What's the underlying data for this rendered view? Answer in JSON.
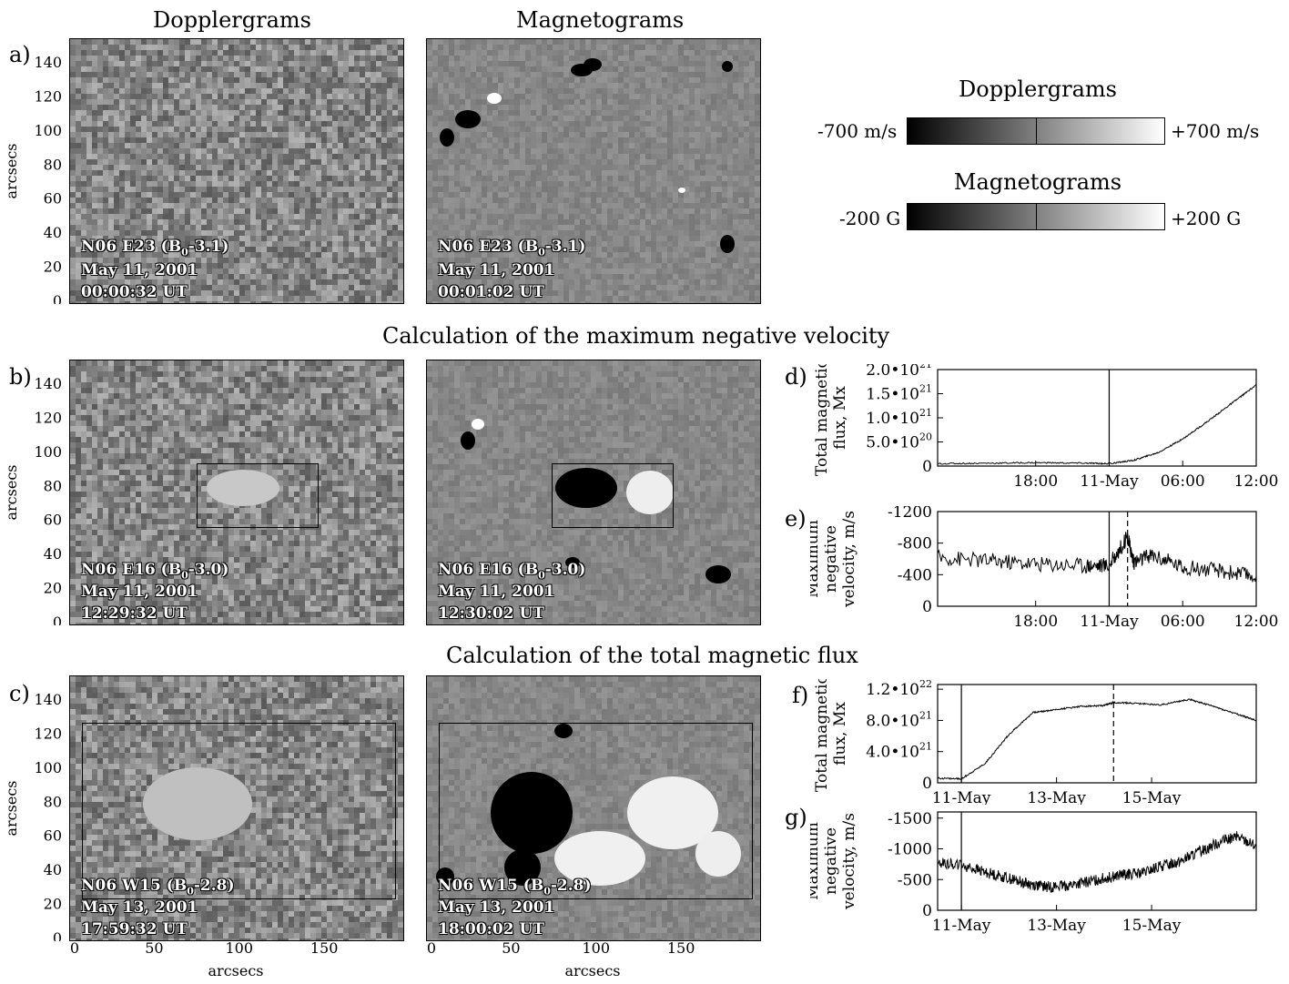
{
  "column_titles": {
    "left": "Dopplergrams",
    "right": "Magnetograms"
  },
  "section_titles": {
    "b": "Calculation of the maximum negative velocity",
    "c": "Calculation of the total magnetic flux"
  },
  "panel_labels": {
    "a": "a)",
    "b": "b)",
    "c": "c)",
    "d": "d)",
    "e": "e)",
    "f": "f)",
    "g": "g)"
  },
  "image_axes": {
    "ylabel": "arcsecs",
    "xlabel": "arcsecs",
    "yticks": [
      "140",
      "120",
      "100",
      "80",
      "60",
      "40",
      "20",
      "0"
    ],
    "xticks": [
      "0",
      "50",
      "100",
      "150"
    ]
  },
  "images": {
    "a_doppler": {
      "line1": "N06 E23 (B",
      "sub": "0",
      "rest": "-3.1)",
      "line2": "May 11, 2001",
      "line3": "00:00:32 UT"
    },
    "a_magneto": {
      "line1": "N06 E23 (B",
      "sub": "0",
      "rest": "-3.1)",
      "line2": "May 11, 2001",
      "line3": "00:01:02 UT"
    },
    "b_doppler": {
      "line1": "N06 E16 (B",
      "sub": "0",
      "rest": "-3.0)",
      "line2": "May 11, 2001",
      "line3": "12:29:32 UT"
    },
    "b_magneto": {
      "line1": "N06 E16 (B",
      "sub": "0",
      "rest": "-3.0)",
      "line2": "May 11, 2001",
      "line3": "12:30:02 UT"
    },
    "c_doppler": {
      "line1": "N06 W15 (B",
      "sub": "0",
      "rest": "-2.8)",
      "line2": "May 13, 2001",
      "line3": "17:59:32 UT"
    },
    "c_magneto": {
      "line1": "N06 W15 (B",
      "sub": "0",
      "rest": "-2.8)",
      "line2": "May 13, 2001",
      "line3": "18:00:02 UT"
    }
  },
  "colorbars": {
    "doppler": {
      "title": "Dopplergrams",
      "min": "-700 m/s",
      "max": "+700 m/s"
    },
    "magneto": {
      "title": "Magnetograms",
      "min": "-200 G",
      "max": "+200 G"
    }
  },
  "chart_data": [
    {
      "id": "d",
      "type": "line",
      "ylabel_lines": [
        "Total magnetic",
        "flux, Mx"
      ],
      "yticks": [
        {
          "v": 2e+21,
          "label": "2.0•10",
          "exp": "21"
        },
        {
          "v": 1.5e+21,
          "label": "1.5•10",
          "exp": "21"
        },
        {
          "v": 1e+21,
          "label": "1.0•10",
          "exp": "21"
        },
        {
          "v": 5e+20,
          "label": "5.0•10",
          "exp": "20"
        },
        {
          "v": 0,
          "label": "0",
          "exp": ""
        }
      ],
      "ylim": [
        0,
        2e+21
      ],
      "xlim_hours": [
        -14,
        12
      ],
      "xticks": [
        {
          "h": -6,
          "label": "18:00"
        },
        {
          "h": 0,
          "label": "11-May"
        },
        {
          "h": 6,
          "label": "06:00"
        },
        {
          "h": 12,
          "label": "12:00"
        }
      ],
      "vlines": [
        {
          "h": 0,
          "style": "solid"
        }
      ],
      "series": [
        {
          "x": [
            -14,
            -10,
            -6,
            -2,
            0,
            2,
            4,
            6,
            8,
            10,
            12
          ],
          "y": [
            5e+19,
            6e+19,
            7e+19,
            6e+19,
            5e+19,
            1.2e+20,
            2.8e+20,
            5.6e+20,
            9.2e+20,
            1.3e+21,
            1.68e+21
          ]
        }
      ]
    },
    {
      "id": "e",
      "type": "line",
      "ylabel_lines": [
        "Maximum",
        "negative",
        "velocity, m/s"
      ],
      "yticks": [
        {
          "v": 1200,
          "label": "-1200",
          "exp": ""
        },
        {
          "v": 800,
          "label": "-800",
          "exp": ""
        },
        {
          "v": 400,
          "label": "-400",
          "exp": ""
        },
        {
          "v": 0,
          "label": "0",
          "exp": ""
        }
      ],
      "ylim": [
        0,
        1200
      ],
      "xlim_hours": [
        -14,
        12
      ],
      "xticks": [
        {
          "h": -6,
          "label": "18:00"
        },
        {
          "h": 0,
          "label": "11-May"
        },
        {
          "h": 6,
          "label": "06:00"
        },
        {
          "h": 12,
          "label": "12:00"
        }
      ],
      "vlines": [
        {
          "h": 0,
          "style": "solid"
        },
        {
          "h": 1.5,
          "style": "dashed"
        }
      ],
      "series": [
        {
          "x": [
            -14,
            -10,
            -6,
            -2,
            0,
            1.5,
            2,
            3.5,
            6,
            9,
            12
          ],
          "y": [
            620,
            580,
            540,
            520,
            520,
            880,
            560,
            650,
            500,
            450,
            380
          ]
        }
      ]
    },
    {
      "id": "f",
      "type": "line",
      "ylabel_lines": [
        "Total magnetic",
        "flux, Mx"
      ],
      "yticks": [
        {
          "v": 1.2e+22,
          "label": "1.2•10",
          "exp": "22"
        },
        {
          "v": 8e+21,
          "label": "8.0•10",
          "exp": "21"
        },
        {
          "v": 4e+21,
          "label": "4.0•10",
          "exp": "21"
        },
        {
          "v": 0,
          "label": "0",
          "exp": ""
        }
      ],
      "ylim": [
        0,
        1.26e+22
      ],
      "xlim_days": [
        10.5,
        17.2
      ],
      "xticks": [
        {
          "d": 11,
          "label": "11-May"
        },
        {
          "d": 13,
          "label": "13-May"
        },
        {
          "d": 15,
          "label": "15-May"
        }
      ],
      "vlines": [
        {
          "d": 11.0,
          "style": "solid"
        },
        {
          "d": 14.2,
          "style": "dashed"
        }
      ],
      "series": [
        {
          "x": [
            10.5,
            11.0,
            11.5,
            12.0,
            12.5,
            13.0,
            13.5,
            14.0,
            14.2,
            14.6,
            15.2,
            15.8,
            16.3,
            16.8,
            17.2
          ],
          "y": [
            6e+20,
            5e+20,
            2.5e+21,
            6.2e+21,
            9e+21,
            9.4e+21,
            9.8e+21,
            9.9e+21,
            1.03e+22,
            1.02e+22,
            1e+22,
            1.07e+22,
            9.8e+21,
            8.8e+21,
            8e+21
          ]
        }
      ]
    },
    {
      "id": "g",
      "type": "line",
      "ylabel_lines": [
        "Maximum",
        "negative",
        "velocity, m/s"
      ],
      "yticks": [
        {
          "v": 1500,
          "label": "-1500",
          "exp": ""
        },
        {
          "v": 1000,
          "label": "-1000",
          "exp": ""
        },
        {
          "v": 500,
          "label": "-500",
          "exp": ""
        },
        {
          "v": 0,
          "label": "0",
          "exp": ""
        }
      ],
      "ylim": [
        0,
        1600
      ],
      "xlim_days": [
        10.5,
        17.2
      ],
      "xticks": [
        {
          "d": 11,
          "label": "11-May"
        },
        {
          "d": 13,
          "label": "13-May"
        },
        {
          "d": 15,
          "label": "15-May"
        }
      ],
      "vlines": [
        {
          "d": 11.0,
          "style": "solid"
        }
      ],
      "series": [
        {
          "x": [
            10.5,
            11.0,
            11.5,
            12.0,
            12.4,
            12.8,
            13.2,
            13.6,
            14.0,
            14.4,
            14.8,
            15.2,
            15.6,
            16.0,
            16.4,
            16.8,
            17.2
          ],
          "y": [
            780,
            740,
            620,
            520,
            430,
            380,
            400,
            450,
            520,
            580,
            600,
            720,
            800,
            950,
            1100,
            1200,
            1050
          ]
        }
      ]
    }
  ]
}
